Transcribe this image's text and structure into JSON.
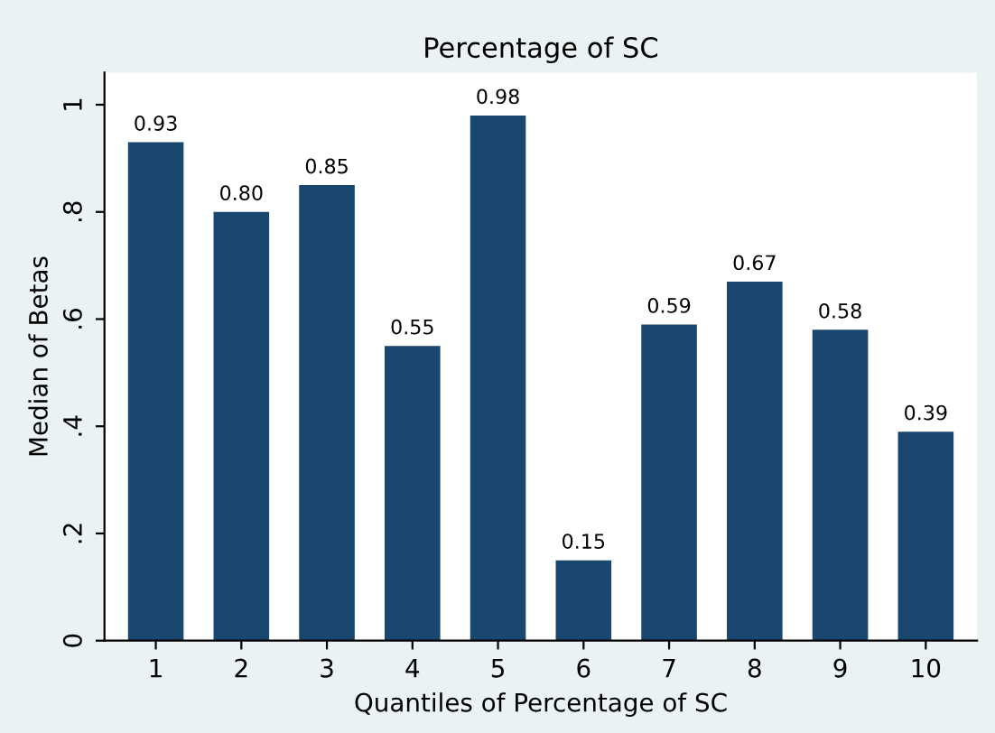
{
  "chart_data": {
    "type": "bar",
    "title": "Percentage of SC",
    "xlabel": "Quantiles of Percentage of SC",
    "ylabel": "Median of Betas",
    "categories": [
      "1",
      "2",
      "3",
      "4",
      "5",
      "6",
      "7",
      "8",
      "9",
      "10"
    ],
    "values": [
      0.93,
      0.8,
      0.85,
      0.55,
      0.98,
      0.15,
      0.59,
      0.67,
      0.58,
      0.39
    ],
    "value_labels": [
      "0.93",
      "0.80",
      "0.85",
      "0.55",
      "0.98",
      "0.15",
      "0.59",
      "0.67",
      "0.58",
      "0.39"
    ],
    "color": "#1a476f",
    "grid": false,
    "ylim": [
      0,
      1.06
    ],
    "yticks": [
      0,
      {
        "value": 0.2,
        "label": ".2"
      },
      {
        "value": 0.4,
        "label": ".4"
      },
      {
        "value": 0.6,
        "label": ".6"
      },
      {
        "value": 0.8,
        "label": ".8"
      },
      1
    ]
  }
}
